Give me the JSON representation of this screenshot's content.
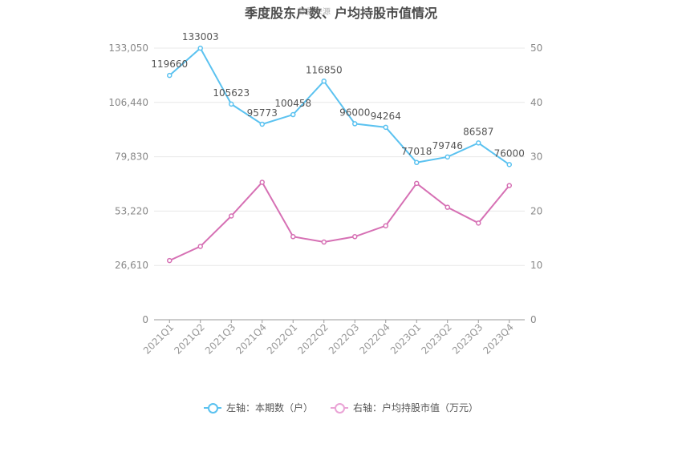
{
  "chart_data": {
    "type": "line",
    "title": "季度股东户数、户均持股市值情况",
    "watermark": "数据来源",
    "categories": [
      "2021Q1",
      "2021Q2",
      "2021Q3",
      "2021Q4",
      "2022Q1",
      "2022Q2",
      "2022Q3",
      "2022Q4",
      "2023Q1",
      "2023Q2",
      "2023Q3",
      "2023Q4"
    ],
    "y_left": {
      "ticks": [
        "0",
        "26,610",
        "53,220",
        "79,830",
        "106,440",
        "133,050"
      ],
      "range": [
        0,
        133050
      ]
    },
    "y_right": {
      "ticks": [
        "0",
        "10",
        "20",
        "30",
        "40",
        "50"
      ],
      "range": [
        0,
        50
      ]
    },
    "grid": true,
    "legend_position": "bottom",
    "series": [
      {
        "name": "左轴：本期数（户）",
        "axis": "left",
        "color": "#5bc2f0",
        "values": [
          119660,
          133003,
          105623,
          95773,
          100458,
          116850,
          96000,
          94264,
          77018,
          79746,
          86587,
          76000
        ],
        "labels": [
          "119660",
          "133003",
          "105623",
          "95773",
          "100458",
          "116850",
          "96000",
          "94264",
          "77018",
          "79746",
          "86587",
          "76000"
        ]
      },
      {
        "name": "右轴：户均持股市值（万元）",
        "axis": "right",
        "color": "#d670b4",
        "values": [
          10.9,
          13.5,
          19.1,
          25.3,
          15.3,
          14.3,
          15.3,
          17.3,
          25.1,
          20.7,
          17.8,
          24.7
        ]
      }
    ]
  }
}
